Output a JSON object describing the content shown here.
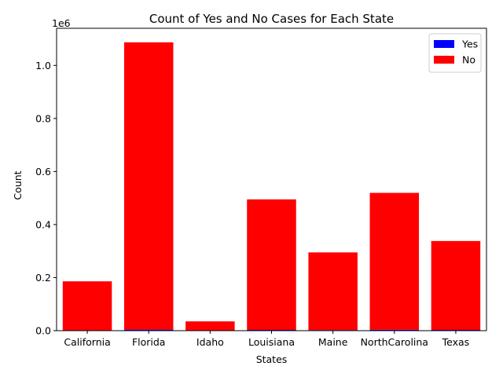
{
  "chart_data": {
    "type": "bar",
    "stacked": true,
    "title": "Count of Yes and No Cases for Each State",
    "xlabel": "States",
    "ylabel": "Count",
    "y_offset_text": "1e6",
    "categories": [
      "California",
      "Florida",
      "Idaho",
      "Louisiana",
      "Maine",
      "NorthCarolina",
      "Texas"
    ],
    "series": [
      {
        "name": "Yes",
        "color": "#0000ff",
        "values": [
          1000,
          4000,
          500,
          3000,
          2500,
          3500,
          3000
        ]
      },
      {
        "name": "No",
        "color": "#ff0000",
        "values": [
          185000,
          1083000,
          34500,
          492000,
          292500,
          516000,
          335000
        ]
      }
    ],
    "yticks": [
      0.0,
      0.2,
      0.4,
      0.6,
      0.8,
      1.0
    ],
    "ylim": [
      0,
      1140000
    ],
    "legend_position": "upper right",
    "grid": false
  }
}
